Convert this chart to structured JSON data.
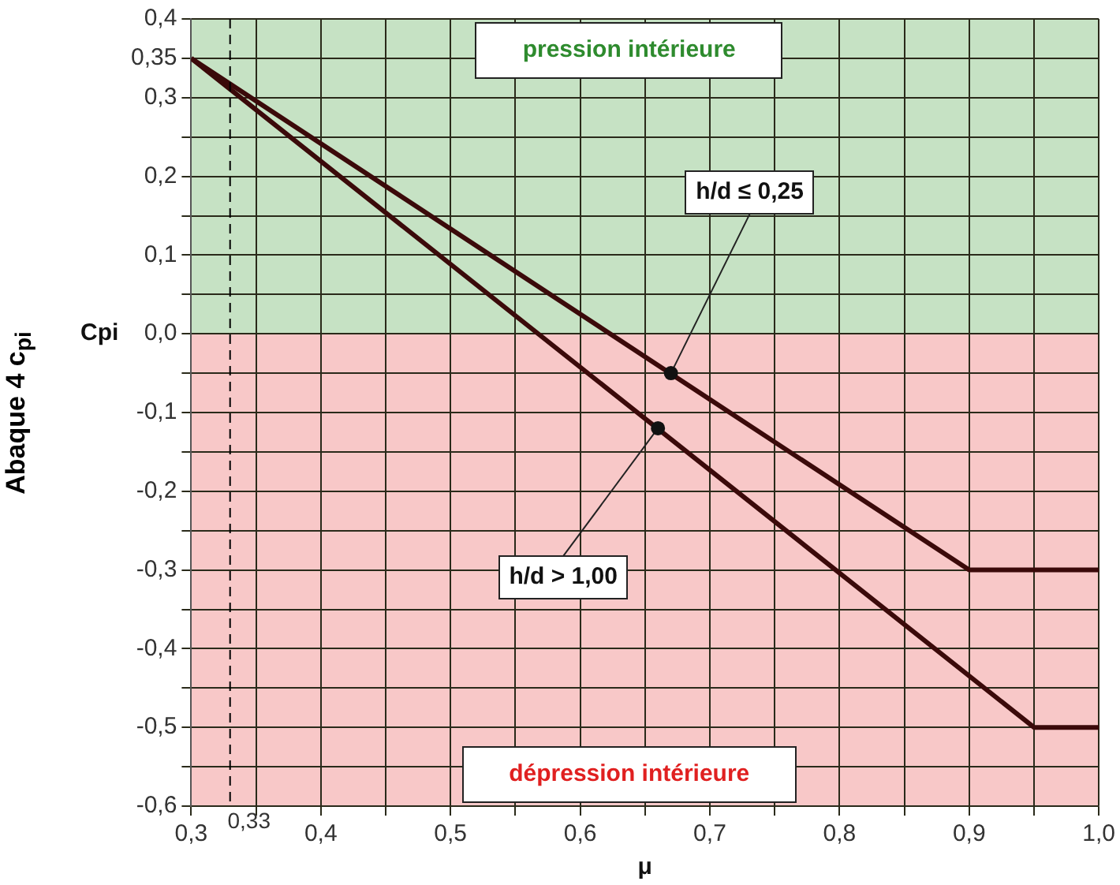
{
  "chart_data": {
    "type": "line",
    "title": "Abaque 4 c$_{pi}$",
    "xlabel": "μ",
    "ylabel": "Cpi",
    "series": [
      {
        "color": "#3b0a0a",
        "x": [
          0.3,
          0.9,
          1.0
        ],
        "values": [
          0.35,
          -0.3,
          -0.3
        ]
      },
      {
        "color": "#3b0a0a",
        "x": [
          0.3,
          0.95,
          1.0
        ],
        "values": [
          0.35,
          -0.5,
          -0.5
        ]
      }
    ],
    "annotations": [
      {
        "text": "h/d ≤ 0,25",
        "x": 0.67,
        "y": -0.05
      },
      {
        "text": "h/d > 1,00",
        "x": 0.66,
        "y": -0.12
      }
    ],
    "bands": [
      {
        "axis": "y",
        "from": 0,
        "to": 0.4,
        "label": "pression intérieure",
        "color": "#c6e2c4"
      },
      {
        "axis": "y",
        "from": -0.6,
        "to": 0,
        "label": "dépression intérieure",
        "color": "#f8c8c8"
      }
    ],
    "ref_lines": [
      {
        "axis": "x",
        "value": 0.33,
        "label": "0,33",
        "line_style": "dashed"
      }
    ],
    "xlim": [
      0.3,
      1.0
    ],
    "xticks": [
      {
        "value": 0.3,
        "label": "0,3"
      },
      {
        "value": 0.35,
        "label": null
      },
      {
        "value": 0.4,
        "label": "0,4"
      },
      {
        "value": 0.45,
        "label": null
      },
      {
        "value": 0.5,
        "label": "0,5"
      },
      {
        "value": 0.55,
        "label": null
      },
      {
        "value": 0.6,
        "label": "0,6"
      },
      {
        "value": 0.65,
        "label": null
      },
      {
        "value": 0.7,
        "label": "0,7"
      },
      {
        "value": 0.75,
        "label": null
      },
      {
        "value": 0.8,
        "label": "0,8"
      },
      {
        "value": 0.85,
        "label": null
      },
      {
        "value": 0.9,
        "label": "0,9"
      },
      {
        "value": 0.95,
        "label": null
      },
      {
        "value": 1.0,
        "label": "1,0"
      }
    ],
    "ylim": [
      -0.6,
      0.4
    ],
    "yticks": [
      {
        "value": -0.6,
        "label": "-0,6"
      },
      {
        "value": -0.55,
        "label": null
      },
      {
        "value": -0.5,
        "label": "-0,5"
      },
      {
        "value": -0.45,
        "label": null
      },
      {
        "value": -0.4,
        "label": "-0,4"
      },
      {
        "value": -0.35,
        "label": null
      },
      {
        "value": -0.3,
        "label": "-0,3"
      },
      {
        "value": -0.25,
        "label": null
      },
      {
        "value": -0.2,
        "label": "-0,2"
      },
      {
        "value": -0.15,
        "label": null
      },
      {
        "value": -0.1,
        "label": "-0,1"
      },
      {
        "value": -0.05,
        "label": null
      },
      {
        "value": 0,
        "label": "0,0"
      },
      {
        "value": 0.05,
        "label": null
      },
      {
        "value": 0.1,
        "label": "0,1"
      },
      {
        "value": 0.15,
        "label": null
      },
      {
        "value": 0.2,
        "label": "0,2"
      },
      {
        "value": 0.25,
        "label": null
      },
      {
        "value": 0.3,
        "label": "0,3"
      },
      {
        "value": 0.35,
        "label": "0,35"
      },
      {
        "value": 0.4,
        "label": "0,4"
      }
    ],
    "grid": true,
    "legend": false,
    "marker": "none",
    "line_style": "solid"
  }
}
